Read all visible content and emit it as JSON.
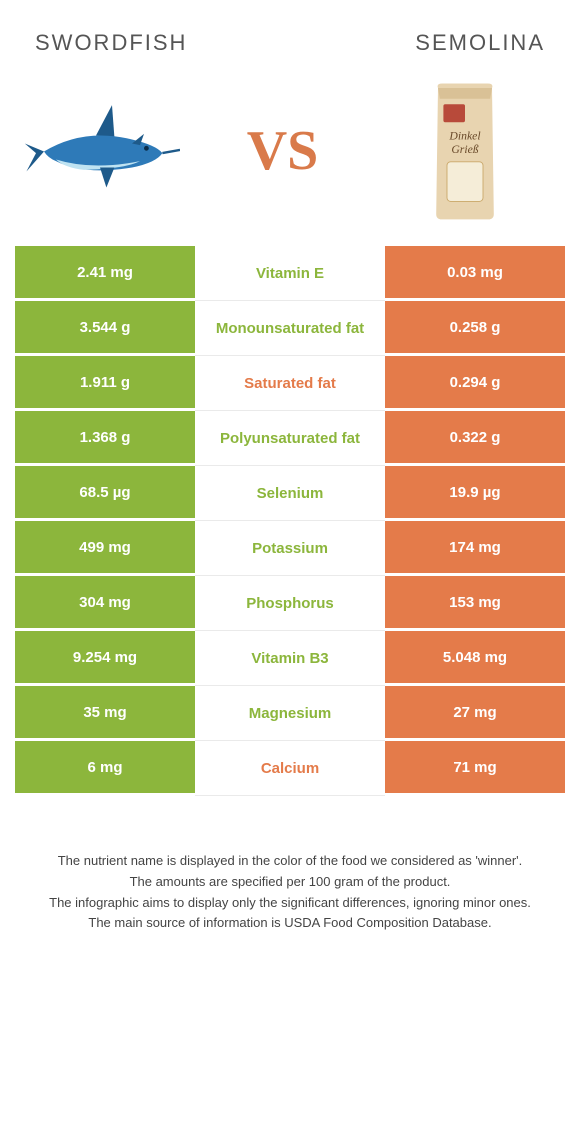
{
  "header": {
    "left": "Swordfish",
    "right": "Semolina"
  },
  "vs": "VS",
  "colors": {
    "left": "#8cb63c",
    "right": "#e47b4a",
    "midWinnerLeft": "#8cb63c",
    "midWinnerRight": "#e47b4a"
  },
  "rows": [
    {
      "left": "2.41 mg",
      "label": "Vitamin E",
      "right": "0.03 mg",
      "winner": "left"
    },
    {
      "left": "3.544 g",
      "label": "Monounsaturated fat",
      "right": "0.258 g",
      "winner": "left"
    },
    {
      "left": "1.911 g",
      "label": "Saturated fat",
      "right": "0.294 g",
      "winner": "right"
    },
    {
      "left": "1.368 g",
      "label": "Polyunsaturated fat",
      "right": "0.322 g",
      "winner": "left"
    },
    {
      "left": "68.5 µg",
      "label": "Selenium",
      "right": "19.9 µg",
      "winner": "left"
    },
    {
      "left": "499 mg",
      "label": "Potassium",
      "right": "174 mg",
      "winner": "left"
    },
    {
      "left": "304 mg",
      "label": "Phosphorus",
      "right": "153 mg",
      "winner": "left"
    },
    {
      "left": "9.254 mg",
      "label": "Vitamin B3",
      "right": "5.048 mg",
      "winner": "left"
    },
    {
      "left": "35 mg",
      "label": "Magnesium",
      "right": "27 mg",
      "winner": "left"
    },
    {
      "left": "6 mg",
      "label": "Calcium",
      "right": "71 mg",
      "winner": "right"
    }
  ],
  "footer": {
    "line1": "The nutrient name is displayed in the color of the food we considered as 'winner'.",
    "line2": "The amounts are specified per 100 gram of the product.",
    "line3": "The infographic aims to display only the significant differences, ignoring minor ones.",
    "line4": "The main source of information is USDA Food Composition Database."
  },
  "bag_text": "Dinkel Grieß"
}
